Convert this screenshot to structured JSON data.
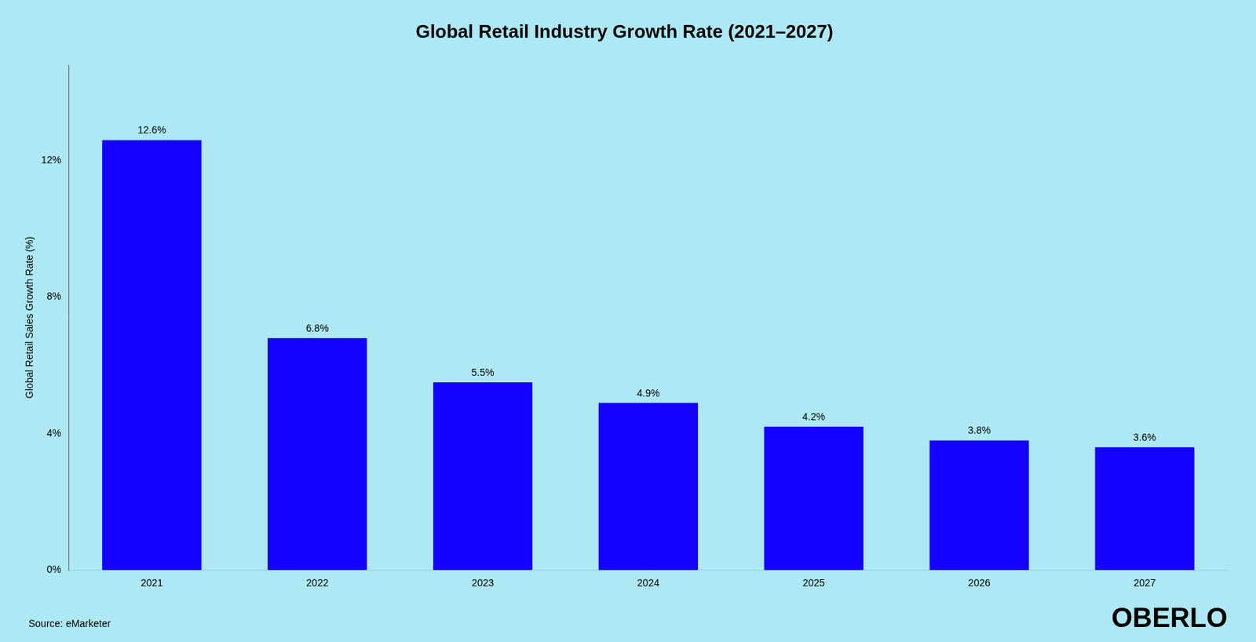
{
  "chart_data": {
    "type": "bar",
    "title": "Global Retail Industry Growth Rate (2021–2027)",
    "y_label": "Global Retail Sales Growth Rate (%)",
    "categories": [
      "2021",
      "2022",
      "2023",
      "2024",
      "2025",
      "2026",
      "2027"
    ],
    "values": [
      12.6,
      6.8,
      5.5,
      4.9,
      4.2,
      3.8,
      3.6
    ],
    "value_labels": [
      "12.6%",
      "6.8%",
      "5.5%",
      "4.9%",
      "4.2%",
      "3.8%",
      "3.6%"
    ],
    "data_labels": true,
    "color": "#1400FF",
    "ylim": [
      0,
      14.8
    ],
    "yticks": [
      {
        "value": 0,
        "label": "0%"
      },
      {
        "value": 4,
        "label": "4%"
      },
      {
        "value": 8,
        "label": "8%"
      },
      {
        "value": 12,
        "label": "12%"
      }
    ],
    "grid": false,
    "annotations": [
      "Source: eMarketer",
      "OBERLO"
    ]
  }
}
